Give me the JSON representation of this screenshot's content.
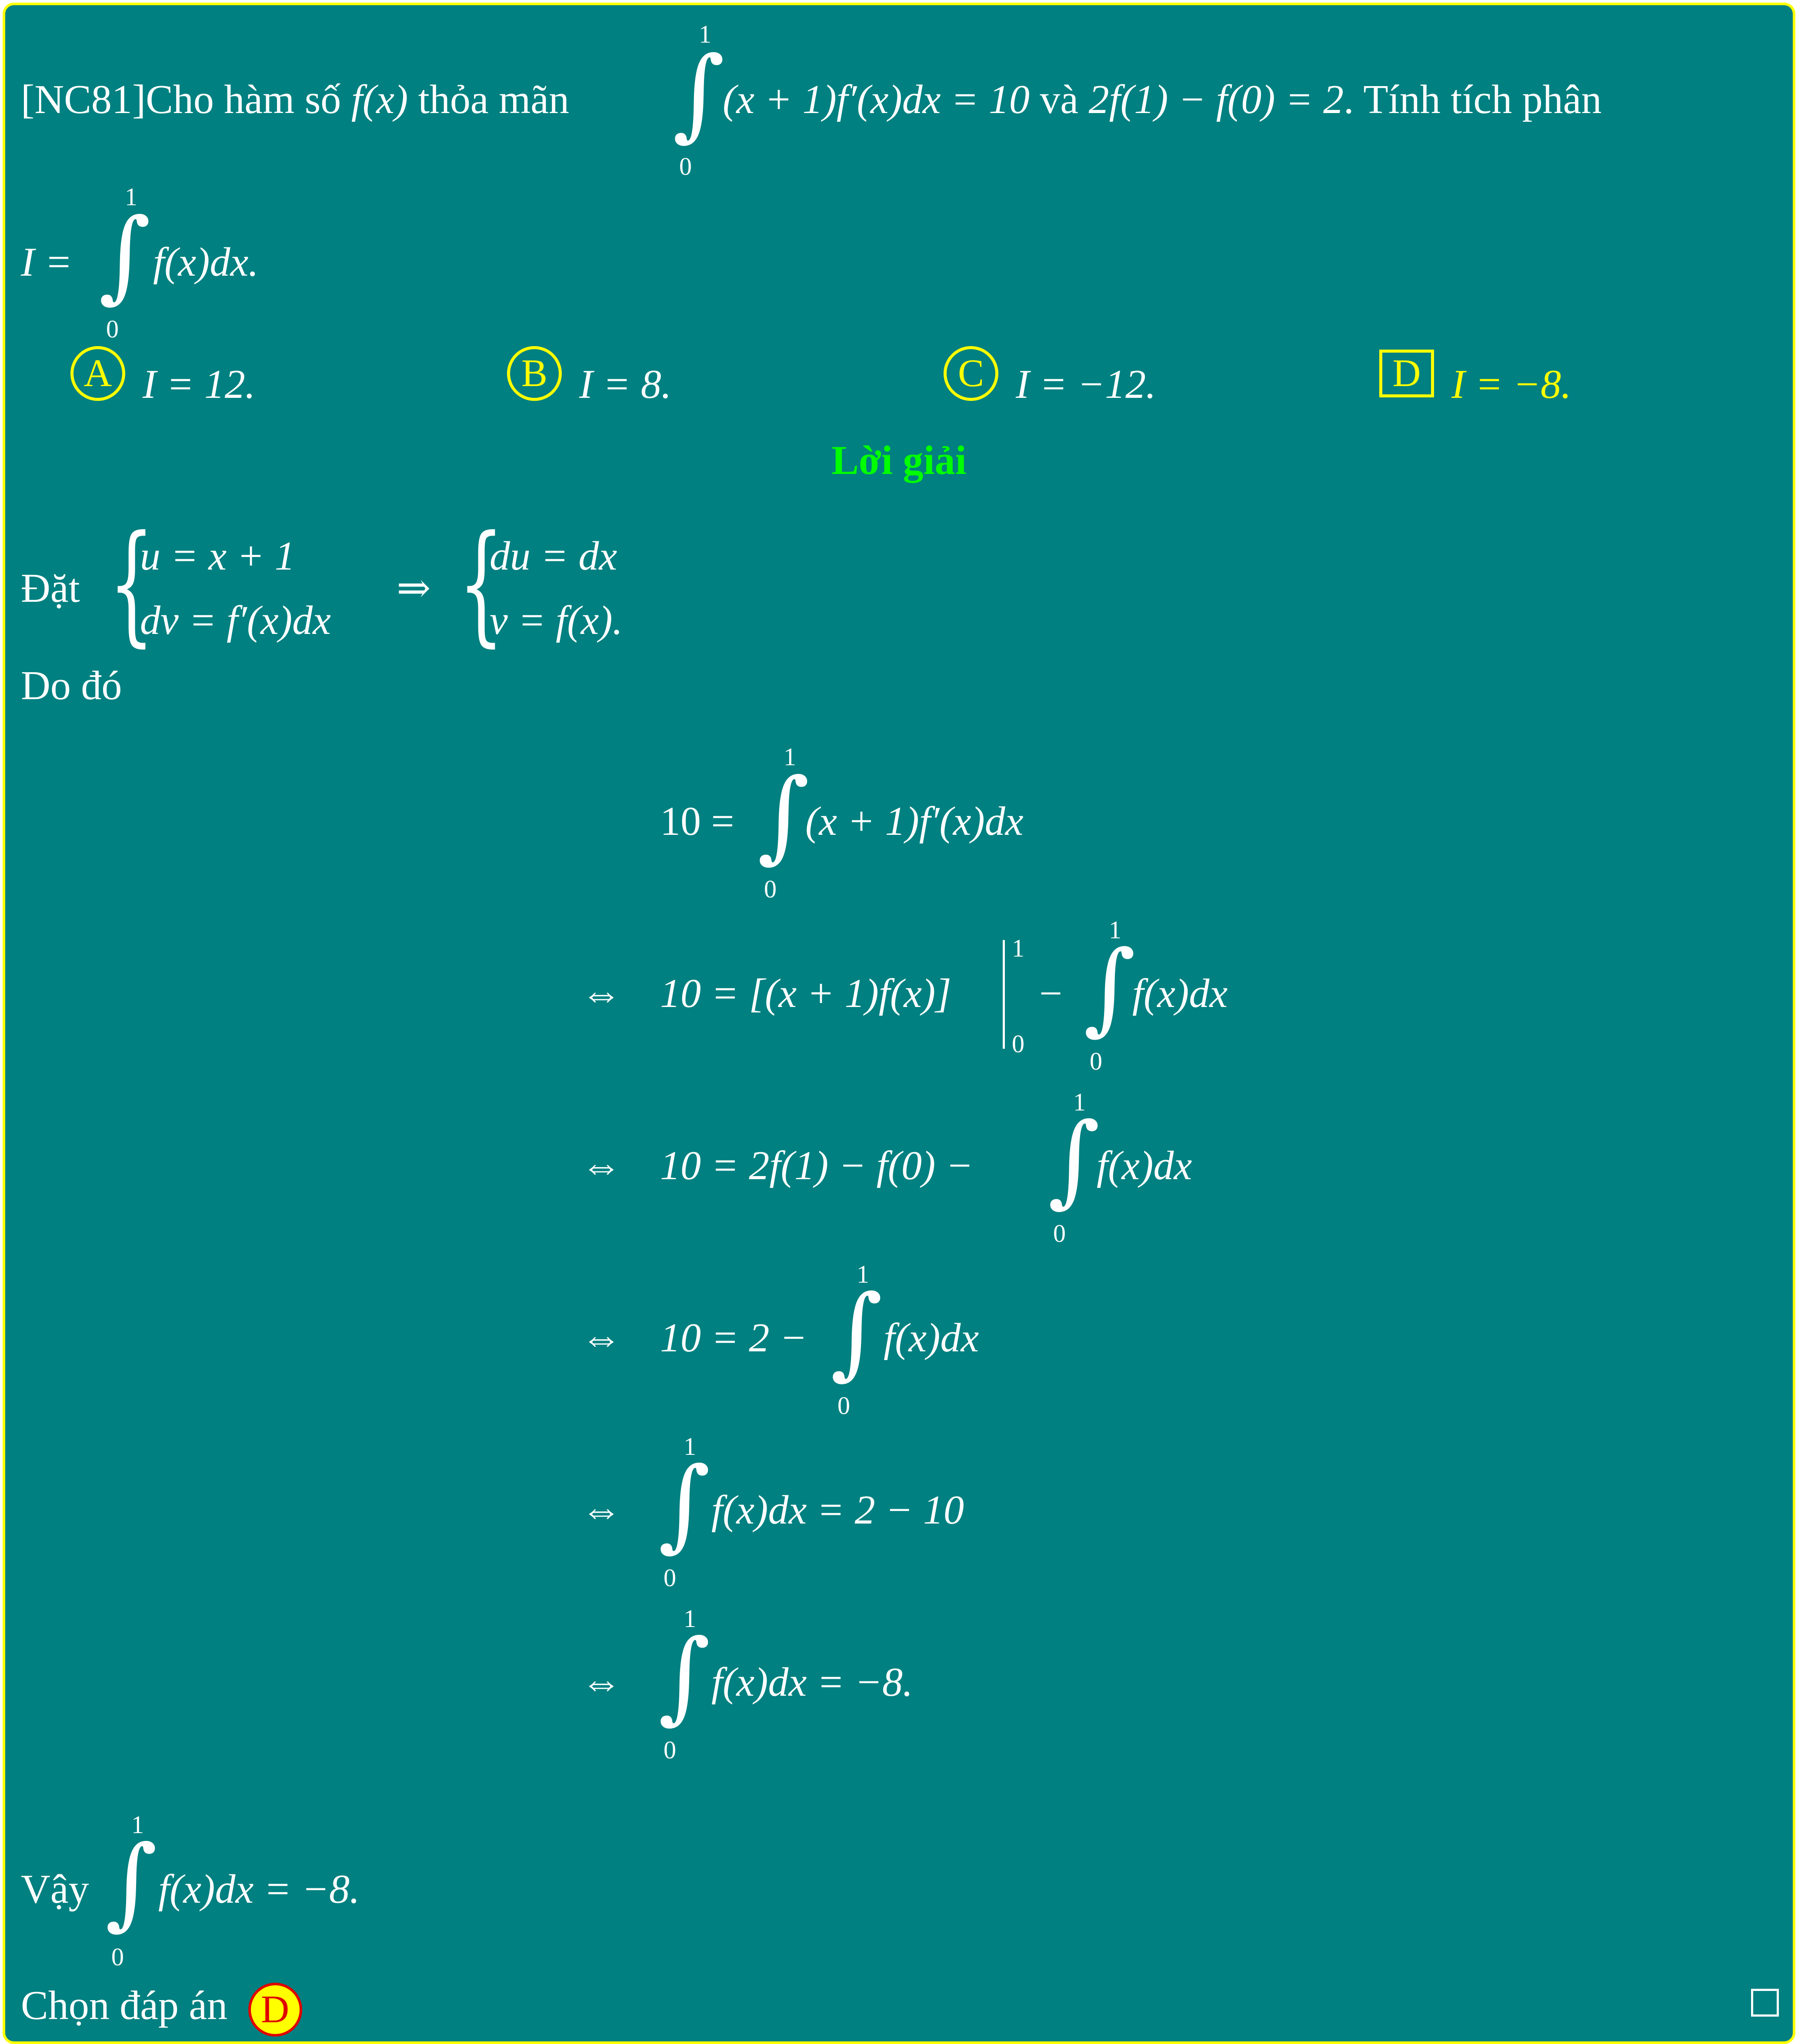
{
  "problem": {
    "tag": "[NC81]",
    "line1_pre": "Cho hàm số ",
    "f_of_x": "f(x)",
    "thoa_man": " thỏa mãn ",
    "integral_lower": "0",
    "integral_upper": "1",
    "integrand1": "(x + 1)f′(x)dx = 10",
    "va": " và ",
    "condition": "2f(1) − f(0) = 2",
    "tail": ". Tính tích phân",
    "I_eq": "I =",
    "integrand2": "f(x)dx."
  },
  "choices": [
    {
      "label": "A",
      "text": "I = 12.",
      "selected": false
    },
    {
      "label": "B",
      "text": "I = 8.",
      "selected": false
    },
    {
      "label": "C",
      "text": "I = −12.",
      "selected": false
    },
    {
      "label": "D",
      "text": "I = −8.",
      "selected": true
    }
  ],
  "solution": {
    "heading": "Lời giải",
    "dat": "Đặt",
    "sub_left_1": "u = x + 1",
    "sub_left_2": "dv = f′(x)dx",
    "implies": "⇒",
    "sub_right_1": "du = dx",
    "sub_right_2": "v = f(x).",
    "do_do": "Do đó",
    "iff": "⇔",
    "eq1_left": "10 =",
    "eq1_right": "(x + 1)f′(x)dx",
    "eq2_left": "10 = [(x + 1)f(x)]",
    "eq2_minus": "−",
    "eq2_right": "f(x)dx",
    "eq3_left": "10 = 2f(1) − f(0) −",
    "eq3_right": "f(x)dx",
    "eq4_left": "10 = 2 −",
    "eq4_right": "f(x)dx",
    "eq5_right": "f(x)dx = 2 − 10",
    "eq6_right": "f(x)dx = −8.",
    "lower": "0",
    "upper": "1",
    "vay": "Vậy",
    "vay_right": "f(x)dx = −8.",
    "chon": "Chọn đáp án",
    "answer": "D"
  },
  "colors": {
    "background": "#008080",
    "border": "#ffff00",
    "heading": "#00ff00",
    "selected_choice": "#ffff00",
    "answer_badge_text": "#e00000"
  }
}
